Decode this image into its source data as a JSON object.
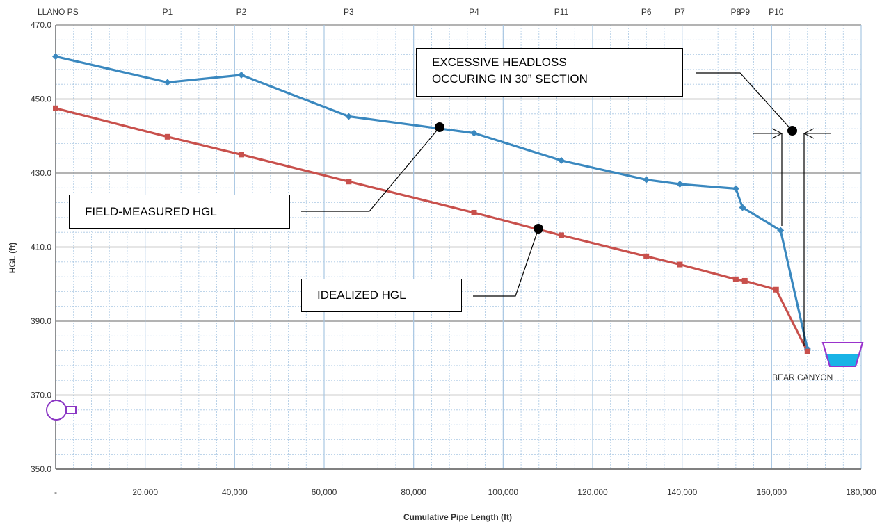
{
  "chart_data": {
    "type": "line",
    "x_axis": {
      "label": "Cumulative Pipe Length (ft)",
      "range": [
        0,
        180000
      ],
      "ticks": [
        0,
        20000,
        40000,
        60000,
        80000,
        100000,
        120000,
        140000,
        160000,
        180000
      ],
      "tick_labels": [
        "-",
        "20,000",
        "40,000",
        "60,000",
        "80,000",
        "100,000",
        "120,000",
        "140,000",
        "160,000",
        "180,000"
      ]
    },
    "y_axis": {
      "label": "HGL (ft)",
      "range": [
        350,
        470
      ],
      "ticks": [
        350,
        370,
        390,
        410,
        430,
        450,
        470
      ],
      "tick_labels": [
        "350.0",
        "370.0",
        "390.0",
        "410.0",
        "430.0",
        "450.0",
        "470.0"
      ]
    },
    "grid": true,
    "stations": [
      {
        "label": "LLANO PS",
        "x": 0
      },
      {
        "label": "P1",
        "x": 25000
      },
      {
        "label": "P2",
        "x": 41500
      },
      {
        "label": "P3",
        "x": 65500
      },
      {
        "label": "P4",
        "x": 93500
      },
      {
        "label": "P11",
        "x": 113000
      },
      {
        "label": "P6",
        "x": 132000
      },
      {
        "label": "P7",
        "x": 139500
      },
      {
        "label": "P8",
        "x": 152000
      },
      {
        "label": "P9",
        "x": 154000
      },
      {
        "label": "P10",
        "x": 161000
      }
    ],
    "series": [
      {
        "color": "#3a88bf",
        "marker": "diamond",
        "points": [
          [
            0,
            461.5
          ],
          [
            25000,
            454.5
          ],
          [
            41500,
            456.5
          ],
          [
            65500,
            445.3
          ],
          [
            93500,
            440.8
          ],
          [
            113000,
            433.4
          ],
          [
            132000,
            428.2
          ],
          [
            139500,
            427.0
          ],
          [
            152000,
            425.8
          ],
          [
            153500,
            420.7
          ],
          [
            162000,
            414.5
          ],
          [
            168000,
            382.5
          ]
        ]
      },
      {
        "color": "#c8504c",
        "marker": "square",
        "points": [
          [
            0,
            447.5
          ],
          [
            25000,
            439.8
          ],
          [
            41500,
            435.0
          ],
          [
            65500,
            427.7
          ],
          [
            93500,
            419.3
          ],
          [
            113000,
            413.2
          ],
          [
            132000,
            407.5
          ],
          [
            139500,
            405.3
          ],
          [
            152000,
            401.3
          ],
          [
            154000,
            400.9
          ],
          [
            161000,
            398.5
          ],
          [
            168000,
            381.8
          ]
        ]
      }
    ],
    "annotations": [
      {
        "text": "FIELD-MEASURED HGL",
        "target": [
          86000,
          442.5
        ]
      },
      {
        "text": "IDEALIZED HGL",
        "target": [
          108000,
          415.0
        ]
      },
      {
        "text": "EXCESSIVE HEADLOSS OCCURING IN 30” SECTION",
        "lines": [
          "EXCESSIVE HEADLOSS",
          "OCCURING IN 30” SECTION"
        ],
        "target": [
          165000,
          441.0
        ]
      }
    ],
    "endpoint_labels": {
      "reservoir": "BEAR CANYON"
    }
  },
  "colors": {
    "measured": "#3a88bf",
    "idealized": "#c8504c",
    "major_grid": "#9a9a9a",
    "minor_grid": "#a9c7e3",
    "reservoir_outline": "#9933cc",
    "water": "#19b3e6",
    "pump": "#8a36c4"
  },
  "icons": {
    "pump": "pump-station-icon",
    "reservoir": "reservoir-icon"
  }
}
